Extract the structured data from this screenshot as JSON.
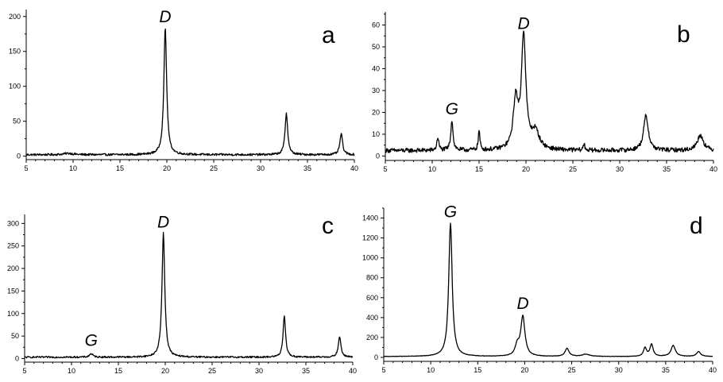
{
  "chart_data": [
    {
      "panel": "a",
      "type": "line",
      "xlim": [
        5,
        40
      ],
      "ylim": [
        -5,
        210
      ],
      "xticks": [
        5,
        10,
        15,
        20,
        25,
        30,
        35,
        40
      ],
      "yticks": [
        0,
        50,
        100,
        150,
        200
      ],
      "baseline": 2,
      "noise": 1.5,
      "peaks": [
        {
          "x": 9.5,
          "h": 2,
          "w": 0.6
        },
        {
          "x": 19.83,
          "h": 182,
          "w": 0.18
        },
        {
          "x": 32.75,
          "h": 60,
          "w": 0.17
        },
        {
          "x": 38.6,
          "h": 30,
          "w": 0.17
        }
      ],
      "annotations": [
        {
          "text": "D",
          "x": 19.83,
          "y": 185
        }
      ]
    },
    {
      "panel": "b",
      "type": "line",
      "xlim": [
        5,
        40
      ],
      "ylim": [
        -2,
        66
      ],
      "xticks": [
        5,
        10,
        15,
        20,
        25,
        30,
        35,
        40
      ],
      "yticks": [
        0,
        10,
        20,
        30,
        40,
        50,
        60
      ],
      "baseline": 2.5,
      "noise": 1.0,
      "peaks": [
        {
          "x": 10.6,
          "h": 6,
          "w": 0.12
        },
        {
          "x": 12.1,
          "h": 14,
          "w": 0.14
        },
        {
          "x": 15.0,
          "h": 9,
          "w": 0.1
        },
        {
          "x": 18.9,
          "h": 22,
          "w": 0.3
        },
        {
          "x": 19.75,
          "h": 52,
          "w": 0.28
        },
        {
          "x": 21.0,
          "h": 8,
          "w": 0.5
        },
        {
          "x": 26.2,
          "h": 3,
          "w": 0.1
        },
        {
          "x": 32.8,
          "h": 16,
          "w": 0.3
        },
        {
          "x": 38.6,
          "h": 7,
          "w": 0.4
        }
      ],
      "annotations": [
        {
          "text": "G",
          "x": 12.1,
          "y": 17
        },
        {
          "text": "D",
          "x": 19.75,
          "y": 56
        }
      ]
    },
    {
      "panel": "c",
      "type": "line",
      "xlim": [
        5,
        40
      ],
      "ylim": [
        -8,
        320
      ],
      "xticks": [
        5,
        10,
        15,
        20,
        25,
        30,
        35,
        40
      ],
      "yticks": [
        0,
        50,
        100,
        150,
        200,
        250,
        300
      ],
      "baseline": 3,
      "noise": 1.8,
      "peaks": [
        {
          "x": 12.1,
          "h": 8,
          "w": 0.2
        },
        {
          "x": 19.8,
          "h": 277,
          "w": 0.18
        },
        {
          "x": 32.7,
          "h": 93,
          "w": 0.16
        },
        {
          "x": 38.6,
          "h": 45,
          "w": 0.17
        }
      ],
      "annotations": [
        {
          "text": "G",
          "x": 12.1,
          "y": 18
        },
        {
          "text": "D",
          "x": 19.8,
          "y": 280
        }
      ]
    },
    {
      "panel": "d",
      "type": "line",
      "xlim": [
        5,
        40
      ],
      "ylim": [
        -40,
        1500
      ],
      "xticks": [
        5,
        10,
        15,
        20,
        25,
        30,
        35,
        40
      ],
      "yticks": [
        0,
        200,
        400,
        600,
        800,
        1000,
        1200,
        1400
      ],
      "baseline": 8,
      "noise": 2,
      "peaks": [
        {
          "x": 12.1,
          "h": 1340,
          "w": 0.22
        },
        {
          "x": 19.2,
          "h": 100,
          "w": 0.25
        },
        {
          "x": 19.8,
          "h": 400,
          "w": 0.27
        },
        {
          "x": 24.5,
          "h": 80,
          "w": 0.25
        },
        {
          "x": 26.5,
          "h": 22,
          "w": 0.5
        },
        {
          "x": 32.8,
          "h": 85,
          "w": 0.2
        },
        {
          "x": 33.5,
          "h": 120,
          "w": 0.2
        },
        {
          "x": 35.8,
          "h": 110,
          "w": 0.28
        },
        {
          "x": 38.5,
          "h": 50,
          "w": 0.25
        }
      ],
      "annotations": [
        {
          "text": "G",
          "x": 12.1,
          "y": 1360
        },
        {
          "text": "D",
          "x": 19.8,
          "y": 440
        }
      ]
    }
  ]
}
